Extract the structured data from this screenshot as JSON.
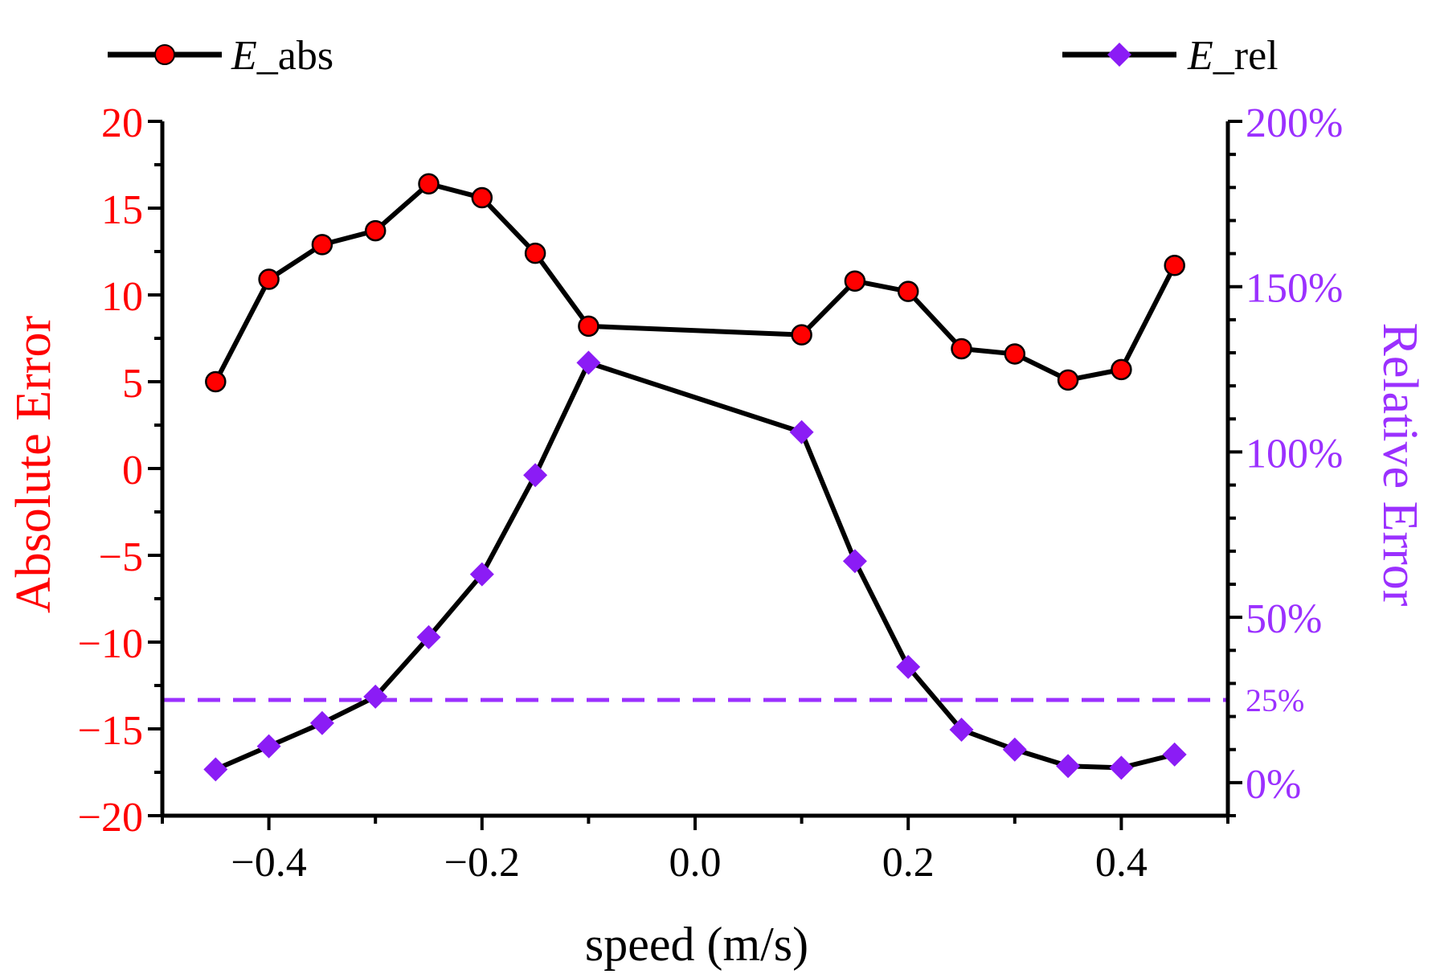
{
  "chart_data": {
    "type": "line",
    "xlabel": "speed (m/s)",
    "ylabel_left": "Absolute Error",
    "ylabel_right": "Relative Error",
    "xlim": [
      -0.5,
      0.5
    ],
    "ylim_left": [
      -20,
      20
    ],
    "ylim_right": [
      -0.1,
      2.0
    ],
    "x_ticks": [
      -0.4,
      -0.2,
      0.0,
      0.2,
      0.4
    ],
    "x_tick_labels": [
      "−0.4",
      "−0.2",
      "0.0",
      "0.2",
      "0.4"
    ],
    "y_left_ticks": [
      20,
      15,
      10,
      5,
      0,
      -5,
      -10,
      -15,
      -20
    ],
    "y_left_tick_labels": [
      "20",
      "15",
      "10",
      "5",
      "0",
      "−5",
      "−10",
      "−15",
      "−20"
    ],
    "y_right_ticks": [
      2.0,
      1.5,
      1.0,
      0.5,
      0.25,
      0.0
    ],
    "y_right_tick_labels": [
      "200%",
      "150%",
      "100%",
      "50%",
      "25%",
      "0%"
    ],
    "reference_line": {
      "axis": "right",
      "value": 0.25,
      "style": "dashed"
    },
    "series": [
      {
        "name_italic": "E",
        "name_suffix": "_abs",
        "axis": "left",
        "marker": "circle",
        "x": [
          -0.45,
          -0.4,
          -0.35,
          -0.3,
          -0.25,
          -0.2,
          -0.15,
          -0.1,
          0.1,
          0.15,
          0.2,
          0.25,
          0.3,
          0.35,
          0.4,
          0.45
        ],
        "values": [
          5.0,
          10.9,
          12.9,
          13.7,
          16.4,
          15.6,
          12.4,
          8.2,
          7.7,
          10.8,
          10.2,
          6.9,
          6.6,
          5.1,
          5.7,
          11.7
        ]
      },
      {
        "name_italic": "E",
        "name_suffix": "_rel",
        "axis": "right",
        "marker": "diamond",
        "x": [
          -0.45,
          -0.4,
          -0.35,
          -0.3,
          -0.25,
          -0.2,
          -0.15,
          -0.1,
          0.1,
          0.15,
          0.2,
          0.25,
          0.3,
          0.35,
          0.4,
          0.45
        ],
        "values": [
          0.04,
          0.11,
          0.18,
          0.26,
          0.44,
          0.63,
          0.93,
          1.27,
          1.06,
          0.67,
          0.35,
          0.16,
          0.1,
          0.05,
          0.045,
          0.085
        ]
      }
    ],
    "colors": {
      "line": "#000000",
      "abs_marker": "#ff0000",
      "rel_marker": "#8b1cf5",
      "left_axis_text": "#ff0000",
      "right_axis_text": "#9b30ff",
      "reference_line": "#9b30ff"
    }
  }
}
